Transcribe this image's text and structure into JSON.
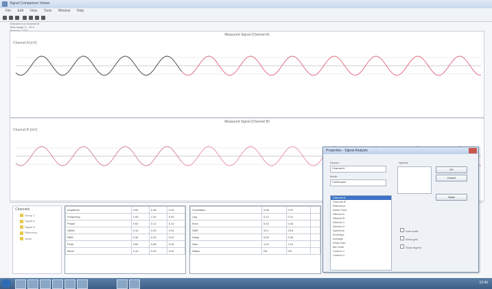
{
  "window": {
    "title": "Signal Comparison Viewer",
    "menus": [
      "File",
      "Edit",
      "View",
      "Tools",
      "Window",
      "Help"
    ]
  },
  "info_lines": [
    "Channel A vs Channel B",
    "Time range: 0 - 10 s",
    "Samples: 1000"
  ],
  "plots": [
    {
      "title": "Measured Signal (Channel A)",
      "label": "Channel A [mV]",
      "color_a": "#3a3a3a",
      "color_b": "#e0607a"
    },
    {
      "title": "Measured Signal (Channel B)",
      "label": "Channel B [mV]",
      "color_a": "#d07a9a",
      "color_b": "#e88aa8"
    }
  ],
  "tree": {
    "title": "Channels",
    "items": [
      "Group 1",
      "Signal A",
      "Signal B",
      "Reference",
      "Noise"
    ]
  },
  "table1": {
    "rows": [
      [
        "Amplitude",
        "0.50",
        "0.48",
        "0.02"
      ],
      [
        "Frequency",
        "1.00",
        "1.00",
        "0.00"
      ],
      [
        "Phase",
        "0.00",
        "0.12",
        "0.12"
      ],
      [
        "Offset",
        "0.10",
        "0.09",
        "0.01"
      ],
      [
        "RMS",
        "0.35",
        "0.34",
        "0.01"
      ],
      [
        "Peak",
        "0.60",
        "0.58",
        "0.02"
      ],
      [
        "Mean",
        "0.10",
        "0.09",
        "0.01"
      ]
    ]
  },
  "table2": {
    "rows": [
      [
        "Correlation",
        "0.98",
        "0.97",
        ""
      ],
      [
        "Lag",
        "0.12",
        "0.11",
        ""
      ],
      [
        "Error",
        "0.02",
        "0.03",
        ""
      ],
      [
        "SNR",
        "24.1",
        "23.8",
        ""
      ],
      [
        "Delay",
        "0.05",
        "0.05",
        ""
      ],
      [
        "Gain",
        "1.02",
        "1.01",
        ""
      ],
      [
        "Status",
        "OK",
        "OK",
        ""
      ]
    ]
  },
  "dialog": {
    "title": "Properties - Signal Analysis",
    "source_label": "Source:",
    "source_value": "Channel A",
    "mode_label": "Mode:",
    "mode_value": "Continuous",
    "options_label": "Options",
    "list": [
      "Channel A",
      "Channel B",
      "Reference",
      "Noise Floor",
      "Filtered A",
      "Filtered B",
      "Derived 1",
      "Derived 2",
      "Spectrum",
      "Envelope",
      "Average",
      "Peak Hold",
      "Min Hold",
      "Custom 1",
      "Custom 2"
    ],
    "selected_index": 0,
    "buttons": [
      "OK",
      "Cancel",
      "Apply"
    ],
    "checks": [
      "Auto scale",
      "Show grid",
      "Show legend"
    ]
  },
  "taskbar": {
    "clock": "12:45"
  }
}
